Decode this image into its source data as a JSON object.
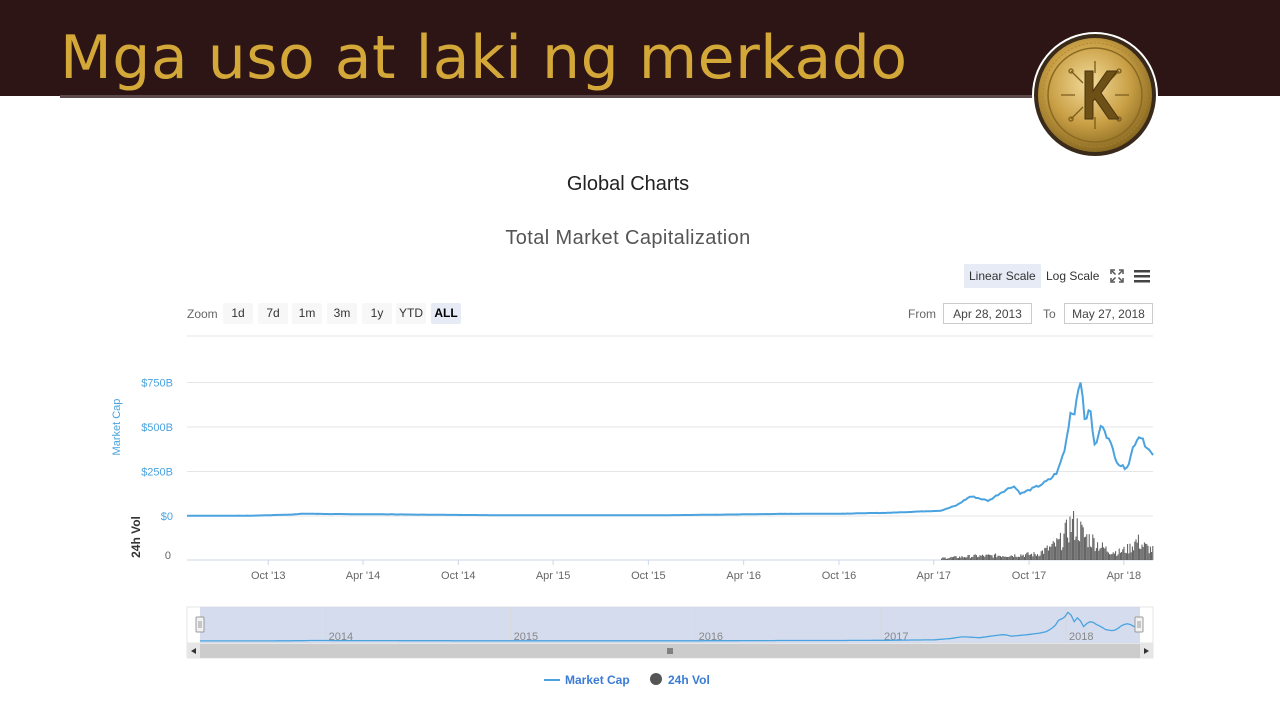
{
  "slide": {
    "title": "Mga uso at laki ng merkado",
    "logo": "kash-coin-logo"
  },
  "page": {
    "title": "Global Charts"
  },
  "controls": {
    "scale_buttons": [
      {
        "label": "Linear Scale",
        "active": true
      },
      {
        "label": "Log Scale",
        "active": false
      }
    ],
    "fullscreen_icon": "expand-icon",
    "menu_icon": "hamburger-menu-icon",
    "zoom_label": "Zoom",
    "zoom_buttons": [
      {
        "label": "1d",
        "active": false
      },
      {
        "label": "7d",
        "active": false
      },
      {
        "label": "1m",
        "active": false
      },
      {
        "label": "3m",
        "active": false
      },
      {
        "label": "1y",
        "active": false
      },
      {
        "label": "YTD",
        "active": false
      },
      {
        "label": "ALL",
        "active": true
      }
    ],
    "from_label": "From",
    "from_value": "Apr 28, 2013",
    "to_label": "To",
    "to_value": "May 27, 2018"
  },
  "navigator": {
    "year_labels": [
      "2014",
      "2015",
      "2016",
      "2017",
      "2018"
    ],
    "scroll_left_icon": "triangle-left-icon",
    "scroll_right_icon": "triangle-right-icon",
    "scroll_grip_icon": "grip-icon"
  },
  "legend": [
    {
      "label": "Market Cap",
      "color": "#4aa3df",
      "symbol": "line"
    },
    {
      "label": "24h Vol",
      "color": "#555555",
      "symbol": "circle"
    }
  ],
  "colors": {
    "banner": "#2e1515",
    "title_gold": "#d4a838",
    "market_cap_line": "#4aa3df",
    "volume_bar": "#555555",
    "navigator_fill": "#ccd6eb"
  },
  "chart_data": {
    "type": "line",
    "title": "Total Market Capitalization",
    "y_axis": {
      "label": "Market Cap",
      "ticks": [
        "$0",
        "$250B",
        "$500B",
        "$750B"
      ],
      "tick_values": [
        0,
        250,
        500,
        750
      ],
      "unit": "billion USD",
      "range": [
        0,
        800
      ]
    },
    "y2_axis": {
      "label": "24h Vol",
      "ticks": [
        "0"
      ]
    },
    "x_axis": {
      "ticks": [
        "Oct '13",
        "Apr '14",
        "Oct '14",
        "Apr '15",
        "Oct '15",
        "Apr '16",
        "Oct '16",
        "Apr '17",
        "Oct '17",
        "Apr '18"
      ],
      "range": [
        "2013-04-28",
        "2018-05-27"
      ]
    },
    "grid": true,
    "legend_position": "bottom-center",
    "series": [
      {
        "name": "Market Cap",
        "unit": "billion USD",
        "points": [
          [
            "2013-04-28",
            1.5
          ],
          [
            "2013-09-01",
            2
          ],
          [
            "2013-11-15",
            8
          ],
          [
            "2013-12-04",
            13
          ],
          [
            "2014-02-01",
            11
          ],
          [
            "2014-06-01",
            9
          ],
          [
            "2014-10-01",
            6
          ],
          [
            "2015-01-15",
            4
          ],
          [
            "2015-06-01",
            4
          ],
          [
            "2015-10-01",
            4
          ],
          [
            "2016-01-01",
            6
          ],
          [
            "2016-06-15",
            12
          ],
          [
            "2016-10-01",
            13
          ],
          [
            "2017-01-05",
            18
          ],
          [
            "2017-03-01",
            25
          ],
          [
            "2017-04-15",
            30
          ],
          [
            "2017-05-15",
            60
          ],
          [
            "2017-06-10",
            110
          ],
          [
            "2017-06-20",
            105
          ],
          [
            "2017-07-15",
            85
          ],
          [
            "2017-08-10",
            135
          ],
          [
            "2017-09-01",
            170
          ],
          [
            "2017-09-15",
            125
          ],
          [
            "2017-10-20",
            170
          ],
          [
            "2017-11-10",
            205
          ],
          [
            "2017-11-25",
            250
          ],
          [
            "2017-12-10",
            390
          ],
          [
            "2017-12-15",
            500
          ],
          [
            "2017-12-20",
            590
          ],
          [
            "2017-12-26",
            570
          ],
          [
            "2018-01-03",
            700
          ],
          [
            "2018-01-07",
            810
          ],
          [
            "2018-01-12",
            640
          ],
          [
            "2018-01-17",
            500
          ],
          [
            "2018-01-22",
            620
          ],
          [
            "2018-01-28",
            560
          ],
          [
            "2018-02-05",
            370
          ],
          [
            "2018-02-12",
            470
          ],
          [
            "2018-02-20",
            520
          ],
          [
            "2018-03-01",
            440
          ],
          [
            "2018-03-10",
            380
          ],
          [
            "2018-03-20",
            300
          ],
          [
            "2018-04-01",
            270
          ],
          [
            "2018-04-10",
            290
          ],
          [
            "2018-04-18",
            380
          ],
          [
            "2018-04-25",
            430
          ],
          [
            "2018-05-05",
            455
          ],
          [
            "2018-05-15",
            380
          ],
          [
            "2018-05-22",
            360
          ],
          [
            "2018-05-27",
            330
          ]
        ]
      },
      {
        "name": "24h Vol",
        "unit": "relative",
        "points": [
          [
            "2017-04-15",
            0.05
          ],
          [
            "2017-06-15",
            0.1
          ],
          [
            "2017-08-15",
            0.12
          ],
          [
            "2017-10-15",
            0.15
          ],
          [
            "2017-11-15",
            0.35
          ],
          [
            "2017-12-01",
            0.5
          ],
          [
            "2017-12-10",
            0.7
          ],
          [
            "2017-12-20",
            0.95
          ],
          [
            "2018-01-05",
            0.8
          ],
          [
            "2018-01-15",
            0.6
          ],
          [
            "2018-02-01",
            0.5
          ],
          [
            "2018-02-15",
            0.35
          ],
          [
            "2018-03-01",
            0.25
          ],
          [
            "2018-03-20",
            0.2
          ],
          [
            "2018-04-10",
            0.3
          ],
          [
            "2018-04-25",
            0.5
          ],
          [
            "2018-05-10",
            0.35
          ],
          [
            "2018-05-27",
            0.25
          ]
        ]
      }
    ]
  }
}
